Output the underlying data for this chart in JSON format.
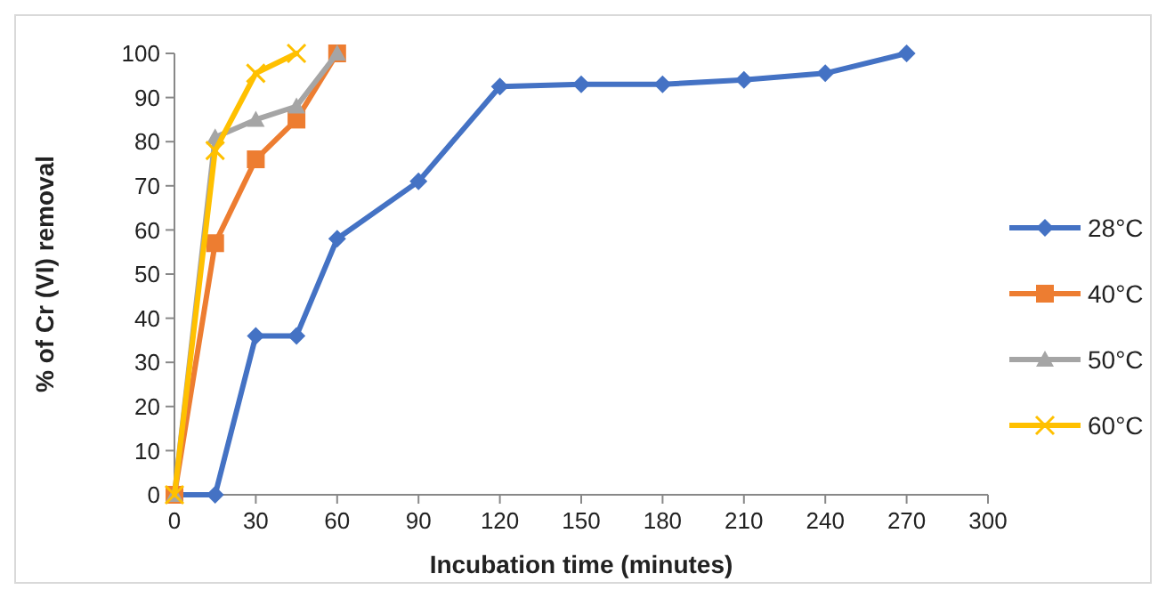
{
  "chart_data": {
    "type": "line",
    "xlabel": "Incubation time (minutes)",
    "ylabel": "% of Cr (VI) removal",
    "xlim": [
      0,
      300
    ],
    "xticks": [
      0,
      30,
      60,
      90,
      120,
      150,
      180,
      210,
      240,
      270,
      300
    ],
    "ylim": [
      0,
      100
    ],
    "yticks": [
      0,
      10,
      20,
      30,
      40,
      50,
      60,
      70,
      80,
      90,
      100
    ],
    "grid": false,
    "legend": "right",
    "series": [
      {
        "name": "28°C",
        "color": "#4472c4",
        "marker": "diamond",
        "x": [
          0,
          15,
          30,
          45,
          60,
          90,
          120,
          150,
          180,
          210,
          240,
          270
        ],
        "values": [
          0,
          0,
          36,
          36,
          58,
          71,
          92.5,
          93,
          93,
          94,
          95.5,
          100
        ]
      },
      {
        "name": "40°C",
        "color": "#ed7d31",
        "marker": "square",
        "x": [
          0,
          15,
          30,
          45,
          60
        ],
        "values": [
          0,
          57,
          76,
          85,
          100
        ]
      },
      {
        "name": "50°C",
        "color": "#a5a5a5",
        "marker": "triangle",
        "x": [
          0,
          15,
          30,
          45,
          60
        ],
        "values": [
          0,
          81,
          85,
          88,
          100
        ]
      },
      {
        "name": "60°C",
        "color": "#ffc000",
        "marker": "cross",
        "x": [
          0,
          15,
          30,
          45
        ],
        "values": [
          0,
          78,
          95.5,
          100
        ]
      }
    ]
  }
}
